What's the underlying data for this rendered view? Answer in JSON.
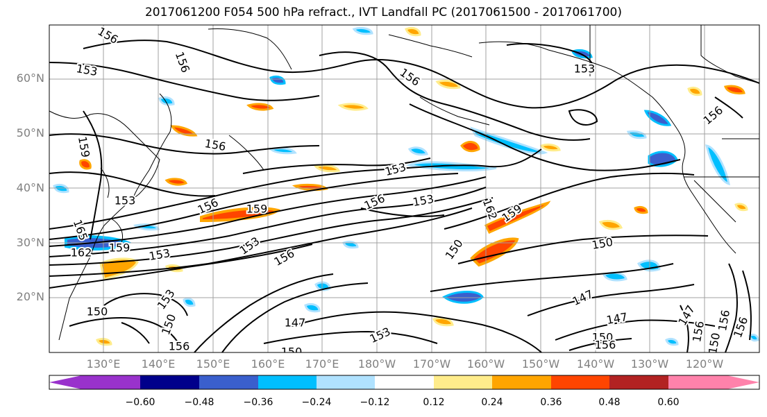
{
  "title": "2017061200 F054 500 hPa refract., IVT Landfall PC (2017061500 - 2017061700)",
  "lat_labels": [
    "60°N",
    "50°N",
    "40°N",
    "30°N",
    "20°N"
  ],
  "lon_labels": [
    "130°E",
    "140°E",
    "150°E",
    "160°E",
    "170°E",
    "180°W",
    "170°W",
    "160°W",
    "150°W",
    "140°W",
    "130°W",
    "120°W"
  ],
  "contour_labels": [
    "156",
    "156",
    "153",
    "159",
    "156",
    "153",
    "156",
    "153",
    "153",
    "156",
    "156",
    "153",
    "162",
    "159",
    "150",
    "150",
    "147",
    "147",
    "153",
    "147",
    "150",
    "150",
    "156",
    "153",
    "156",
    "153",
    "150",
    "156",
    "150",
    "156",
    "150",
    "165",
    "162",
    "159",
    "153",
    "156",
    "147",
    "156",
    "159",
    "156"
  ],
  "colorbar": {
    "ticks": [
      "−0.60",
      "−0.48",
      "−0.36",
      "−0.24",
      "−0.12",
      "0.12",
      "0.24",
      "0.36",
      "0.48",
      "0.60"
    ],
    "colors": [
      "#9932CC",
      "#00008B",
      "#3A5FCD",
      "#00BFFF",
      "#B0E2FF",
      "#FFFFFF",
      "#FFEC8B",
      "#FFA500",
      "#FF4500",
      "#B22222",
      "#FF82AB"
    ]
  },
  "chart_data": {
    "type": "heatmap",
    "title": "2017061200 F054 500 hPa refract., IVT Landfall PC (2017061500 - 2017061700)",
    "lat_range": [
      "10°N",
      "70°N"
    ],
    "lon_range": [
      "120°E",
      "115°W"
    ],
    "contour_levels": [
      147,
      150,
      153,
      156,
      159,
      162,
      165
    ],
    "shading_levels": [
      -0.6,
      -0.48,
      -0.36,
      -0.24,
      -0.12,
      0.12,
      0.24,
      0.36,
      0.48,
      0.6
    ],
    "grid": true
  }
}
